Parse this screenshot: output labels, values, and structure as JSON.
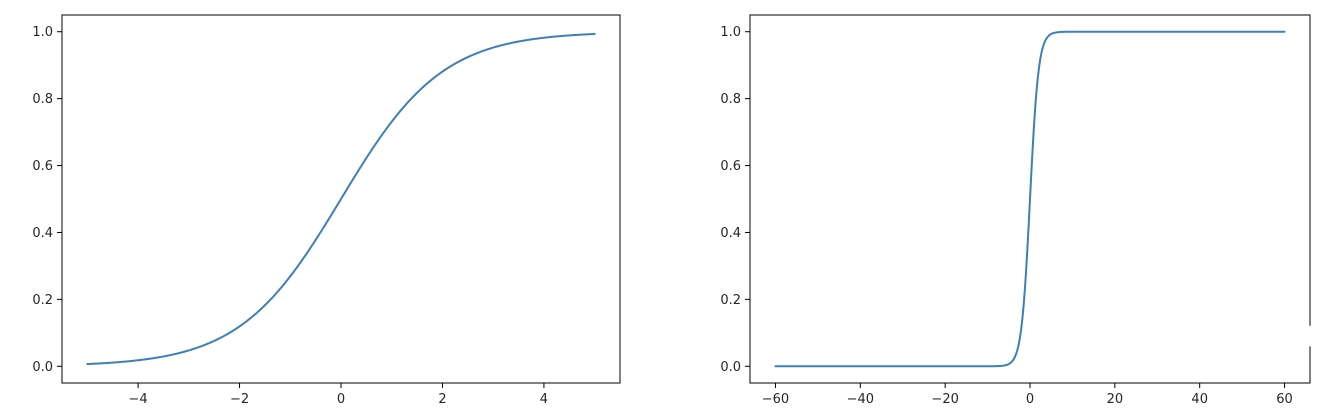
{
  "chart_data": [
    {
      "type": "line",
      "function": "sigmoid",
      "xlim": [
        -5.5,
        5.5
      ],
      "ylim": [
        -0.05,
        1.05
      ],
      "x_range": [
        -5,
        5
      ],
      "xticks": [
        -4,
        -2,
        0,
        2,
        4
      ],
      "xtick_labels": [
        "−4",
        "−2",
        "0",
        "2",
        "4"
      ],
      "yticks": [
        0.0,
        0.2,
        0.4,
        0.6,
        0.8,
        1.0
      ],
      "ytick_labels": [
        "0.0",
        "0.2",
        "0.4",
        "0.6",
        "0.8",
        "1.0"
      ],
      "series": [
        {
          "color": "#3d7fb8",
          "x": [
            -5,
            -4,
            -3,
            -2,
            -1,
            0,
            1,
            2,
            3,
            4,
            5
          ],
          "y": [
            0.0067,
            0.018,
            0.047,
            0.119,
            0.269,
            0.5,
            0.731,
            0.881,
            0.953,
            0.982,
            0.9933
          ]
        }
      ],
      "grid": false,
      "title": "",
      "xlabel": "",
      "ylabel": ""
    },
    {
      "type": "line",
      "function": "sigmoid",
      "xlim": [
        -66,
        66
      ],
      "ylim": [
        -0.05,
        1.05
      ],
      "x_range": [
        -60,
        60
      ],
      "xticks": [
        -60,
        -40,
        -20,
        0,
        20,
        40,
        60
      ],
      "xtick_labels": [
        "−60",
        "−40",
        "−20",
        "0",
        "20",
        "40",
        "60"
      ],
      "yticks": [
        0.0,
        0.2,
        0.4,
        0.6,
        0.8,
        1.0
      ],
      "ytick_labels": [
        "0.0",
        "0.2",
        "0.4",
        "0.6",
        "0.8",
        "1.0"
      ],
      "series": [
        {
          "color": "#3d7fb8",
          "x": [
            -60,
            -10,
            -5,
            -3,
            -1,
            0,
            1,
            3,
            5,
            10,
            60
          ],
          "y": [
            0.0,
            5e-05,
            0.0067,
            0.047,
            0.269,
            0.5,
            0.731,
            0.953,
            0.9933,
            0.99995,
            1.0
          ]
        }
      ],
      "grid": false,
      "title": "",
      "xlabel": "",
      "ylabel": ""
    }
  ]
}
